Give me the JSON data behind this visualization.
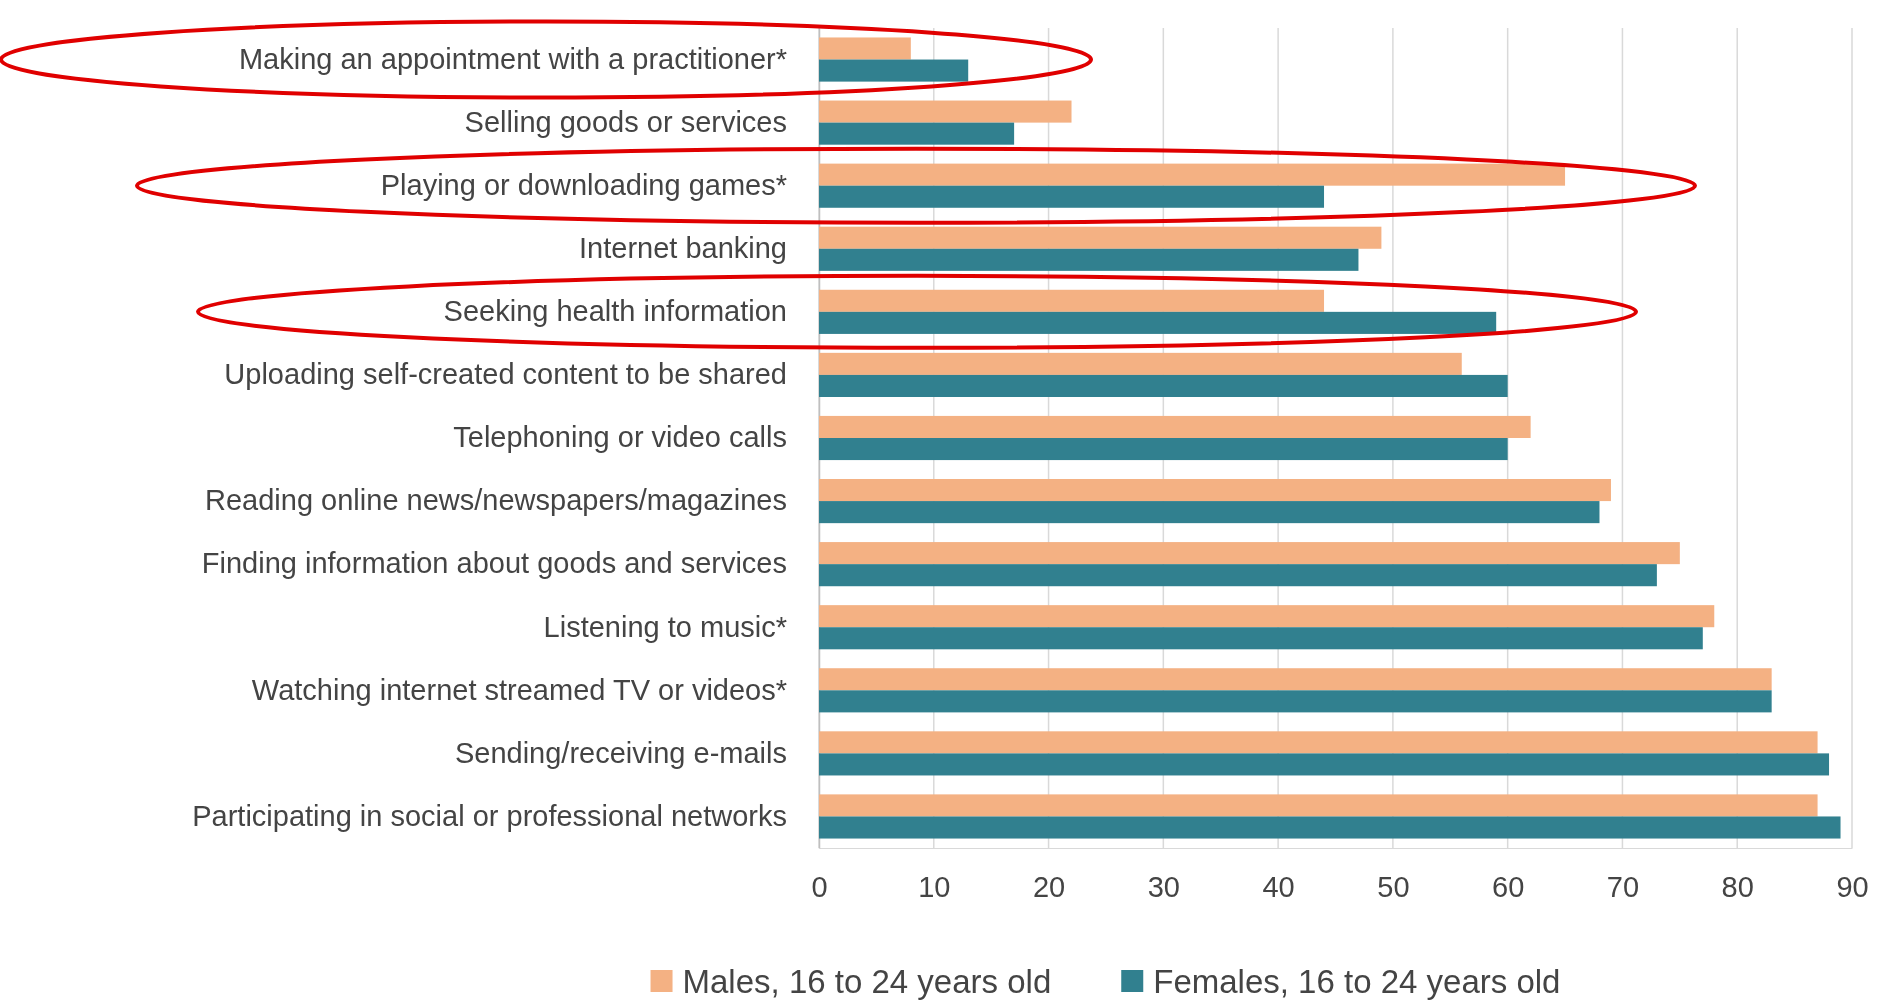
{
  "chart_data": {
    "type": "bar",
    "orientation": "horizontal",
    "categories": [
      "Making an appointment with a practitioner*",
      "Selling goods or services",
      "Playing or downloading games*",
      "Internet banking",
      "Seeking health information",
      "Uploading self-created content to be shared",
      "Telephoning or video calls",
      "Reading online news/newspapers/magazines",
      "Finding information about goods and services",
      "Listening to music*",
      "Watching internet streamed TV or videos*",
      "Sending/receiving e-mails",
      "Participating in social or professional networks"
    ],
    "series": [
      {
        "name": "Males, 16 to 24 years old",
        "color": "#f4b183",
        "values": [
          8,
          22,
          65,
          49,
          44,
          56,
          62,
          69,
          75,
          78,
          83,
          87,
          87
        ]
      },
      {
        "name": "Females, 16 to 24 years old",
        "color": "#31808f",
        "values": [
          13,
          17,
          44,
          47,
          59,
          60,
          60,
          68,
          73,
          77,
          83,
          88,
          89
        ]
      }
    ],
    "xlim": [
      0,
      90
    ],
    "xticks": [
      0,
      10,
      20,
      30,
      40,
      50,
      60,
      70,
      80,
      90
    ],
    "grid": "x",
    "legend": "bottom"
  }
}
